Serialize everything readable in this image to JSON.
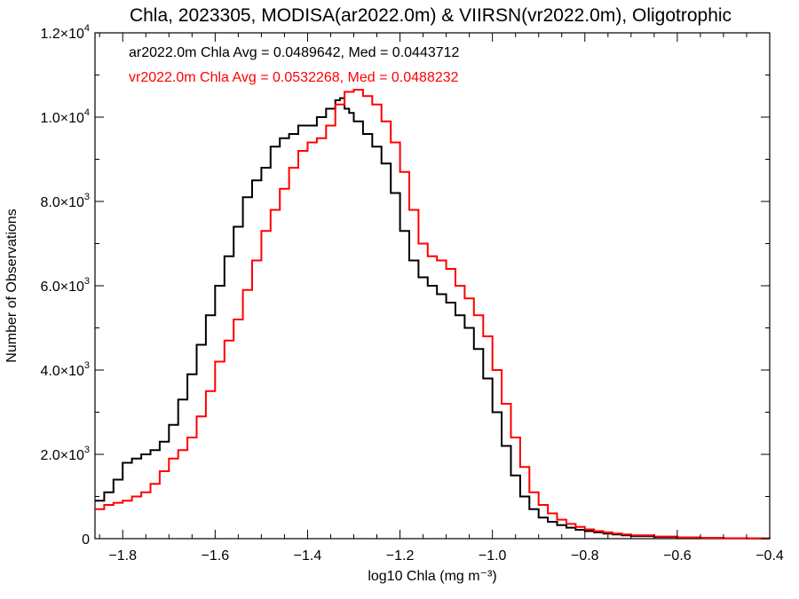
{
  "chart_data": {
    "type": "line",
    "title": "Chla, 2023305, MODISA(ar2022.0m) & VIIRSN(vr2022.0m), Oligotrophic",
    "xlabel": "log10 Chla (mg m⁻³)",
    "ylabel": "Number of Observations",
    "xlim": [
      -1.86,
      -0.4
    ],
    "ylim": [
      0,
      12000
    ],
    "x_ticks": [
      {
        "value": -1.8,
        "label": "−1.8"
      },
      {
        "value": -1.6,
        "label": "−1.6"
      },
      {
        "value": -1.4,
        "label": "−1.4"
      },
      {
        "value": -1.2,
        "label": "−1.2"
      },
      {
        "value": -1.0,
        "label": "−1.0"
      },
      {
        "value": -0.8,
        "label": "−0.8"
      },
      {
        "value": -0.6,
        "label": "−0.6"
      },
      {
        "value": -0.4,
        "label": "−0.4"
      }
    ],
    "y_ticks": [
      {
        "value": 0,
        "mant": "0",
        "exp": ""
      },
      {
        "value": 2000,
        "mant": "2.0×10",
        "exp": "3"
      },
      {
        "value": 4000,
        "mant": "4.0×10",
        "exp": "3"
      },
      {
        "value": 6000,
        "mant": "6.0×10",
        "exp": "3"
      },
      {
        "value": 8000,
        "mant": "8.0×10",
        "exp": "3"
      },
      {
        "value": 10000,
        "mant": "1.0×10",
        "exp": "4"
      },
      {
        "value": 12000,
        "mant": "1.2×10",
        "exp": "4"
      }
    ],
    "grid": false,
    "step": true,
    "annotations": [
      {
        "text": "ar2022.0m Chla Avg = 0.0489642, Med = 0.0443712",
        "color": "#000000"
      },
      {
        "text": "vr2022.0m Chla Avg = 0.0532268, Med = 0.0488232",
        "color": "#ff0000"
      }
    ],
    "series": [
      {
        "color": "#000000",
        "x": [
          -1.86,
          -1.84,
          -1.82,
          -1.8,
          -1.78,
          -1.76,
          -1.74,
          -1.72,
          -1.7,
          -1.68,
          -1.66,
          -1.64,
          -1.62,
          -1.6,
          -1.58,
          -1.56,
          -1.54,
          -1.52,
          -1.5,
          -1.48,
          -1.46,
          -1.44,
          -1.42,
          -1.4,
          -1.38,
          -1.36,
          -1.34,
          -1.33,
          -1.32,
          -1.31,
          -1.3,
          -1.28,
          -1.26,
          -1.24,
          -1.22,
          -1.2,
          -1.18,
          -1.16,
          -1.14,
          -1.12,
          -1.1,
          -1.08,
          -1.06,
          -1.04,
          -1.02,
          -1.0,
          -0.98,
          -0.96,
          -0.94,
          -0.92,
          -0.9,
          -0.88,
          -0.86,
          -0.84,
          -0.82,
          -0.8,
          -0.78,
          -0.76,
          -0.74,
          -0.72,
          -0.7,
          -0.65,
          -0.6,
          -0.55,
          -0.5,
          -0.45,
          -0.4
        ],
        "values": [
          900,
          1100,
          1400,
          1800,
          1900,
          2000,
          2100,
          2300,
          2700,
          3300,
          3900,
          4600,
          5300,
          6000,
          6700,
          7400,
          8100,
          8500,
          8800,
          9300,
          9500,
          9600,
          9800,
          9800,
          10000,
          10200,
          10400,
          10450,
          10200,
          10100,
          9900,
          9600,
          9300,
          8900,
          8200,
          7300,
          6600,
          6200,
          6000,
          5800,
          5600,
          5300,
          5000,
          4500,
          3800,
          3000,
          2200,
          1500,
          1000,
          700,
          500,
          400,
          320,
          260,
          210,
          180,
          150,
          120,
          100,
          80,
          60,
          40,
          25,
          15,
          8,
          4,
          2
        ]
      },
      {
        "color": "#ff0000",
        "x": [
          -1.86,
          -1.84,
          -1.82,
          -1.8,
          -1.78,
          -1.76,
          -1.74,
          -1.72,
          -1.7,
          -1.68,
          -1.66,
          -1.64,
          -1.62,
          -1.6,
          -1.58,
          -1.56,
          -1.54,
          -1.52,
          -1.5,
          -1.48,
          -1.46,
          -1.44,
          -1.42,
          -1.4,
          -1.38,
          -1.36,
          -1.34,
          -1.32,
          -1.3,
          -1.28,
          -1.26,
          -1.24,
          -1.22,
          -1.2,
          -1.18,
          -1.16,
          -1.14,
          -1.12,
          -1.1,
          -1.08,
          -1.06,
          -1.04,
          -1.02,
          -1.0,
          -0.98,
          -0.96,
          -0.94,
          -0.92,
          -0.9,
          -0.88,
          -0.86,
          -0.84,
          -0.82,
          -0.8,
          -0.78,
          -0.76,
          -0.74,
          -0.72,
          -0.7,
          -0.65,
          -0.6,
          -0.55,
          -0.5,
          -0.45,
          -0.4
        ],
        "values": [
          700,
          800,
          850,
          900,
          1000,
          1100,
          1300,
          1600,
          1900,
          2100,
          2400,
          2900,
          3500,
          4200,
          4700,
          5200,
          5900,
          6600,
          7300,
          7800,
          8300,
          8800,
          9200,
          9400,
          9500,
          9800,
          10300,
          10600,
          10650,
          10500,
          10300,
          9900,
          9400,
          8700,
          7800,
          7000,
          6700,
          6600,
          6400,
          6000,
          5700,
          5300,
          4800,
          4000,
          3200,
          2400,
          1700,
          1100,
          800,
          600,
          450,
          350,
          280,
          220,
          180,
          150,
          120,
          100,
          80,
          50,
          30,
          18,
          10,
          5,
          2
        ]
      }
    ]
  }
}
